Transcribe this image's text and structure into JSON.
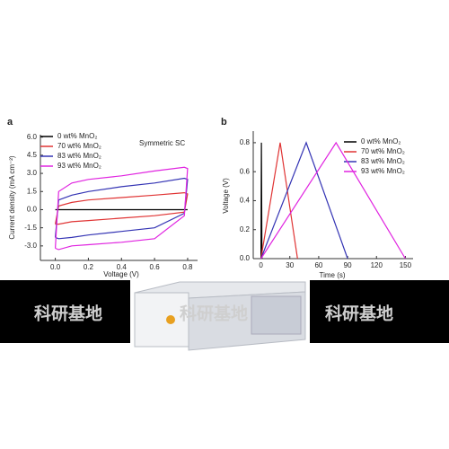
{
  "chart_data": [
    {
      "type": "line",
      "panel_label": "a",
      "xlabel": "Voltage (V)",
      "ylabel": "Current density (mA cm⁻²)",
      "annotation": "Symmetric SC",
      "x": [
        0,
        0.02,
        0.1,
        0.2,
        0.4,
        0.6,
        0.78,
        0.8,
        0.78,
        0.6,
        0.4,
        0.2,
        0.1,
        0.02,
        0
      ],
      "series": [
        {
          "name": "0 wt% MnO₂",
          "color": "#000000",
          "values": [
            0,
            0,
            0,
            0,
            0,
            0,
            0,
            0,
            0,
            0,
            0,
            0,
            0,
            0,
            0
          ]
        },
        {
          "name": "70 wt% MnO₂",
          "color": "#e03434",
          "values": [
            -1.2,
            0.3,
            0.6,
            0.8,
            1.0,
            1.2,
            1.4,
            1.3,
            -0.2,
            -0.5,
            -0.7,
            -0.9,
            -1.0,
            -1.2,
            -1.2
          ]
        },
        {
          "name": "83 wt% MnO₂",
          "color": "#3434b4",
          "values": [
            -2.3,
            0.8,
            1.2,
            1.5,
            1.9,
            2.2,
            2.6,
            2.5,
            -0.3,
            -1.5,
            -1.8,
            -2.1,
            -2.3,
            -2.4,
            -2.3
          ]
        },
        {
          "name": "93 wt% MnO₂",
          "color": "#e024e0",
          "values": [
            -3.2,
            1.5,
            2.2,
            2.5,
            2.8,
            3.2,
            3.5,
            3.4,
            -0.5,
            -2.4,
            -2.7,
            -2.9,
            -3.0,
            -3.3,
            -3.2
          ]
        }
      ],
      "xlim": [
        -0.09,
        0.86
      ],
      "ylim": [
        -4.2,
        6.2
      ],
      "xticks": [
        {
          "value": 0,
          "label": "0.0"
        },
        0.2,
        0.4,
        0.6,
        0.8
      ],
      "yticks": [
        {
          "value": -3,
          "label": "-3.0"
        },
        {
          "value": -1.5,
          "label": "-1.5"
        },
        {
          "value": 0,
          "label": "0.0"
        },
        1.5,
        {
          "value": 3,
          "label": "3.0"
        },
        4.5,
        {
          "value": 6,
          "label": "6.0"
        }
      ]
    },
    {
      "type": "line",
      "panel_label": "b",
      "xlabel": "Time (s)",
      "ylabel": "Voltage (V)",
      "series": [
        {
          "name": "0 wt% MnO₂",
          "color": "#000000",
          "x": [
            0,
            0.5,
            1
          ],
          "values": [
            0,
            0.8,
            0
          ]
        },
        {
          "name": "70 wt% MnO₂",
          "color": "#e03434",
          "x": [
            0,
            20,
            38
          ],
          "values": [
            0,
            0.8,
            0
          ]
        },
        {
          "name": "83 wt% MnO₂",
          "color": "#3434b4",
          "x": [
            0,
            47,
            90
          ],
          "values": [
            0,
            0.8,
            0
          ]
        },
        {
          "name": "93 wt% MnO₂",
          "color": "#e024e0",
          "x": [
            0,
            78,
            150
          ],
          "values": [
            0,
            0.8,
            0
          ]
        }
      ],
      "xlim": [
        -8,
        158
      ],
      "ylim": [
        0,
        0.88
      ],
      "xticks": [
        0,
        30,
        60,
        90,
        120,
        150
      ],
      "yticks": [
        {
          "value": 0,
          "label": "0.0"
        },
        0.2,
        0.4,
        0.6,
        0.8
      ]
    }
  ],
  "watermark": "科研基地"
}
